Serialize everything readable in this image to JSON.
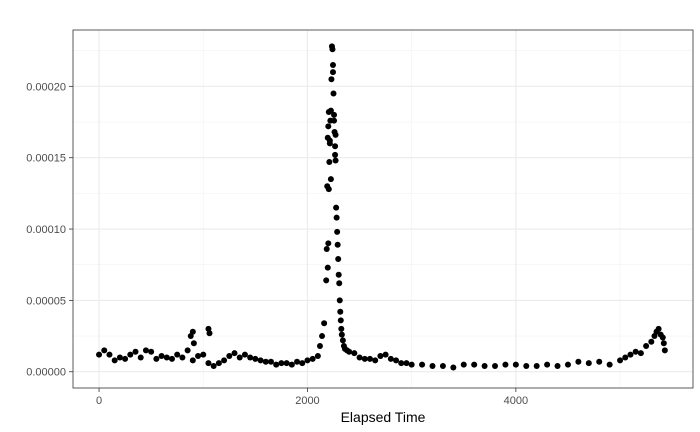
{
  "chart_data": {
    "type": "scatter",
    "title": "",
    "xlabel": "Elapsed Time",
    "ylabel": "",
    "xlim": [
      -250,
      5700
    ],
    "ylim": [
      -1.14e-05,
      0.0002395
    ],
    "x_ticks": [
      0,
      2000,
      4000
    ],
    "x_tick_labels": [
      "0",
      "2000",
      "4000"
    ],
    "y_ticks": [
      0,
      5e-05,
      0.0001,
      0.00015,
      0.0002
    ],
    "y_tick_labels": [
      "0.00000",
      "0.00005",
      "0.00010",
      "0.00015",
      "0.00020"
    ],
    "grid": true,
    "legend": "none",
    "colors": {
      "point": "#000000",
      "grid_major": "#ebebeb",
      "grid_minor": "#f2f2f2",
      "panel_border": "#333333"
    },
    "series": [
      {
        "x": [
          0,
          50,
          100,
          150,
          200,
          250,
          300,
          350,
          400,
          450,
          500,
          550,
          600,
          650,
          700,
          750,
          800,
          850,
          900,
          950,
          1000,
          1050,
          1100,
          1150,
          1200,
          1250,
          1300,
          1350,
          1400,
          1450,
          1500,
          1550,
          1600,
          1650,
          1700,
          1750,
          1800,
          1850,
          1900,
          1950,
          2000,
          2050,
          2100,
          2120,
          2140,
          2160,
          2180,
          2195,
          2200,
          2205,
          2210,
          2215,
          2220,
          2225,
          2230,
          2235,
          2240,
          2245,
          2250,
          2255,
          2260,
          2265,
          2270,
          2275,
          2280,
          2285,
          2290,
          2295,
          2300,
          2305,
          2310,
          2315,
          2320,
          2325,
          2330,
          2340,
          2350,
          2360,
          2380,
          2400,
          2450,
          2500,
          2550,
          2600,
          2650,
          2700,
          2750,
          2800,
          2850,
          2900,
          2950,
          3000,
          3100,
          3200,
          3300,
          3400,
          3500,
          3600,
          3700,
          3800,
          3900,
          4000,
          4100,
          4200,
          4300,
          4400,
          4500,
          4600,
          4700,
          4800,
          4900,
          5000,
          5050,
          5100,
          5150,
          5200,
          5250,
          5300,
          5330,
          5350,
          5370,
          5390,
          5410,
          5420,
          5430,
          880,
          900,
          910,
          1050,
          1060,
          2185,
          2190,
          2195,
          2200,
          2205,
          2215,
          2225,
          2245,
          2255,
          2265,
          2270
        ],
        "y": [
          1.2e-05,
          1.5e-05,
          1.2e-05,
          8e-06,
          1e-05,
          9e-06,
          1.2e-05,
          1.4e-05,
          1e-05,
          1.5e-05,
          1.4e-05,
          9e-06,
          1.1e-05,
          1e-05,
          9e-06,
          1.2e-05,
          1e-05,
          1.5e-05,
          8e-06,
          1.1e-05,
          1.2e-05,
          6e-06,
          4e-06,
          6e-06,
          8e-06,
          1.1e-05,
          1.3e-05,
          1e-05,
          1.2e-05,
          1e-05,
          9e-06,
          8e-06,
          7e-06,
          7e-06,
          5e-06,
          6e-06,
          6e-06,
          5e-06,
          7e-06,
          6e-06,
          8e-06,
          9e-06,
          1.1e-05,
          1.8e-05,
          2.5e-05,
          3.4e-05,
          6.4e-05,
          7.3e-05,
          9e-05,
          0.000128,
          0.000147,
          0.00016,
          0.000176,
          0.000183,
          0.000205,
          0.000228,
          0.000226,
          0.000215,
          0.000195,
          0.00018,
          0.000168,
          0.000152,
          0.000148,
          0.000115,
          0.000108,
          9.8e-05,
          8.9e-05,
          7.9e-05,
          6.8e-05,
          6.2e-05,
          5e-05,
          4.2e-05,
          3.6e-05,
          3e-05,
          2.6e-05,
          2.2e-05,
          1.8e-05,
          1.6e-05,
          1.5e-05,
          1.4e-05,
          1.3e-05,
          1e-05,
          9e-06,
          9e-06,
          8e-06,
          1.1e-05,
          1.2e-05,
          9e-06,
          8e-06,
          6e-06,
          6e-06,
          5e-06,
          5e-06,
          4e-06,
          4e-06,
          3e-06,
          5e-06,
          5e-06,
          4e-06,
          4e-06,
          5e-06,
          5e-06,
          4e-06,
          4e-06,
          5e-06,
          4e-06,
          5e-06,
          7e-06,
          6e-06,
          7e-06,
          5e-06,
          8e-06,
          1e-05,
          1.2e-05,
          1.4e-05,
          1.3e-05,
          1.8e-05,
          2.1e-05,
          2.5e-05,
          2.8e-05,
          3e-05,
          2.6e-05,
          2.4e-05,
          2e-05,
          1.5e-05,
          2.5e-05,
          2.8e-05,
          2e-05,
          3e-05,
          2.7e-05,
          8.6e-05,
          0.00013,
          0.000164,
          0.000172,
          0.000182,
          0.000162,
          0.000135,
          0.00021,
          0.000176,
          0.000158,
          0.000166
        ]
      }
    ]
  }
}
